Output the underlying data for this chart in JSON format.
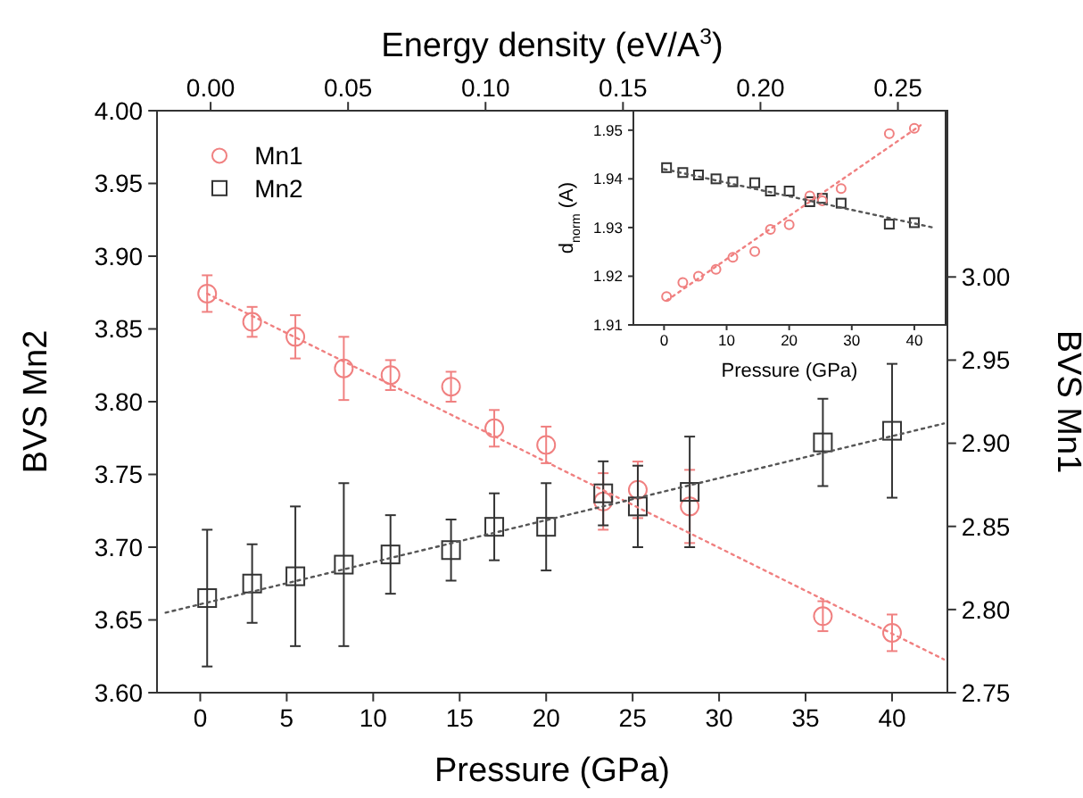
{
  "chart_data": [
    {
      "type": "scatter",
      "xlabel": "Pressure (GPa)",
      "ylabel": "BVS Mn2",
      "y2label": "BVS Mn1",
      "x2label": "Energy density (eV/A$^{3}$)",
      "xlim": [
        -2.5,
        43.2
      ],
      "xticks": [
        0,
        5,
        10,
        15,
        20,
        25,
        30,
        35,
        40
      ],
      "x2lim": [
        -0.0195,
        0.268
      ],
      "x2ticks": [
        {
          "value": 0,
          "label": "0.00"
        },
        {
          "value": 0.05,
          "label": "0.05"
        },
        {
          "value": 0.1,
          "label": "0.10"
        },
        {
          "value": 0.15,
          "label": "0.15"
        },
        {
          "value": 0.2,
          "label": "0.20"
        },
        {
          "value": 0.25,
          "label": "0.25"
        }
      ],
      "ylim": [
        3.6,
        4.0
      ],
      "yticks": [
        {
          "value": 3.6,
          "label": "3.60"
        },
        {
          "value": 3.65,
          "label": "3.65"
        },
        {
          "value": 3.7,
          "label": "3.70"
        },
        {
          "value": 3.75,
          "label": "3.75"
        },
        {
          "value": 3.8,
          "label": "3.80"
        },
        {
          "value": 3.85,
          "label": "3.85"
        },
        {
          "value": 3.9,
          "label": "3.90"
        },
        {
          "value": 3.95,
          "label": "3.95"
        },
        {
          "value": 4.0,
          "label": "4.00"
        }
      ],
      "y2lim": [
        2.75,
        3.1
      ],
      "y2ticks": [
        {
          "value": 2.75,
          "label": "2.75"
        },
        {
          "value": 2.8,
          "label": "2.80"
        },
        {
          "value": 2.85,
          "label": "2.85"
        },
        {
          "value": 2.9,
          "label": "2.90"
        },
        {
          "value": 2.95,
          "label": "2.95"
        },
        {
          "value": 3.0,
          "label": "3.00"
        }
      ],
      "legend": "top left",
      "x": [
        0.4,
        3,
        5.5,
        8.3,
        11,
        14.5,
        17,
        20,
        23.3,
        25.3,
        28.3,
        36,
        40
      ],
      "series": [
        {
          "name": "Mn1",
          "color": "#f08080",
          "axis": "y2",
          "marker": "circle",
          "values": [
            2.99,
            2.973,
            2.964,
            2.945,
            2.941,
            2.934,
            2.909,
            2.899,
            2.865,
            2.872,
            2.862,
            2.796,
            2.786
          ],
          "errors": [
            0.011,
            0.009,
            0.013,
            0.019,
            0.009,
            0.009,
            0.011,
            0.011,
            0.017,
            0.017,
            0.022,
            0.009,
            0.011
          ]
        },
        {
          "name": "Mn2",
          "color": "#333333",
          "marker": "square",
          "values": [
            3.665,
            3.675,
            3.68,
            3.688,
            3.695,
            3.698,
            3.714,
            3.714,
            3.737,
            3.728,
            3.738,
            3.772,
            3.78
          ],
          "errors": [
            0.047,
            0.027,
            0.048,
            0.056,
            0.027,
            0.021,
            0.023,
            0.03,
            0.022,
            0.028,
            0.038,
            0.03,
            0.046
          ]
        },
        {
          "type": "line",
          "color": "#f08080",
          "axis": "y2",
          "line_style": "dotted",
          "x": [
            0.4,
            43
          ],
          "values": [
            2.99,
            2.77
          ]
        },
        {
          "type": "line",
          "color": "#555555",
          "line_style": "dotted",
          "x": [
            -2,
            43
          ],
          "values": [
            3.655,
            3.785
          ]
        }
      ]
    },
    {
      "type": "scatter",
      "xlabel": "Pressure (GPa)",
      "ylabel": "d$_{norm}$ (A)",
      "xlim": [
        -4.9,
        45
      ],
      "xticks": [
        0,
        10,
        20,
        30,
        40
      ],
      "ylim": [
        1.91,
        1.954
      ],
      "yticks": [
        1.91,
        1.92,
        1.93,
        1.94,
        1.95
      ],
      "x": [
        0.4,
        3,
        5.5,
        8.3,
        11,
        14.5,
        17,
        20,
        23.3,
        25.3,
        28.3,
        36,
        40
      ],
      "series": [
        {
          "color": "#333333",
          "marker": "square",
          "values": [
            1.9423,
            1.9413,
            1.9408,
            1.94,
            1.9394,
            1.9392,
            1.9375,
            1.9375,
            1.9353,
            1.936,
            1.935,
            1.9307,
            1.931
          ]
        },
        {
          "color": "#f08080",
          "marker": "circle",
          "values": [
            1.9158,
            1.9187,
            1.92,
            1.9214,
            1.9239,
            1.9251,
            1.9296,
            1.9306,
            1.9365,
            1.9355,
            1.938,
            1.9493,
            1.9504
          ]
        },
        {
          "type": "line",
          "color": "#f08080",
          "line_style": "dotted",
          "x": [
            0.4,
            41
          ],
          "values": [
            1.915,
            1.951
          ]
        },
        {
          "type": "line",
          "color": "#555555",
          "line_style": "dotted",
          "x": [
            0,
            43
          ],
          "values": [
            1.942,
            1.93
          ]
        }
      ]
    }
  ]
}
